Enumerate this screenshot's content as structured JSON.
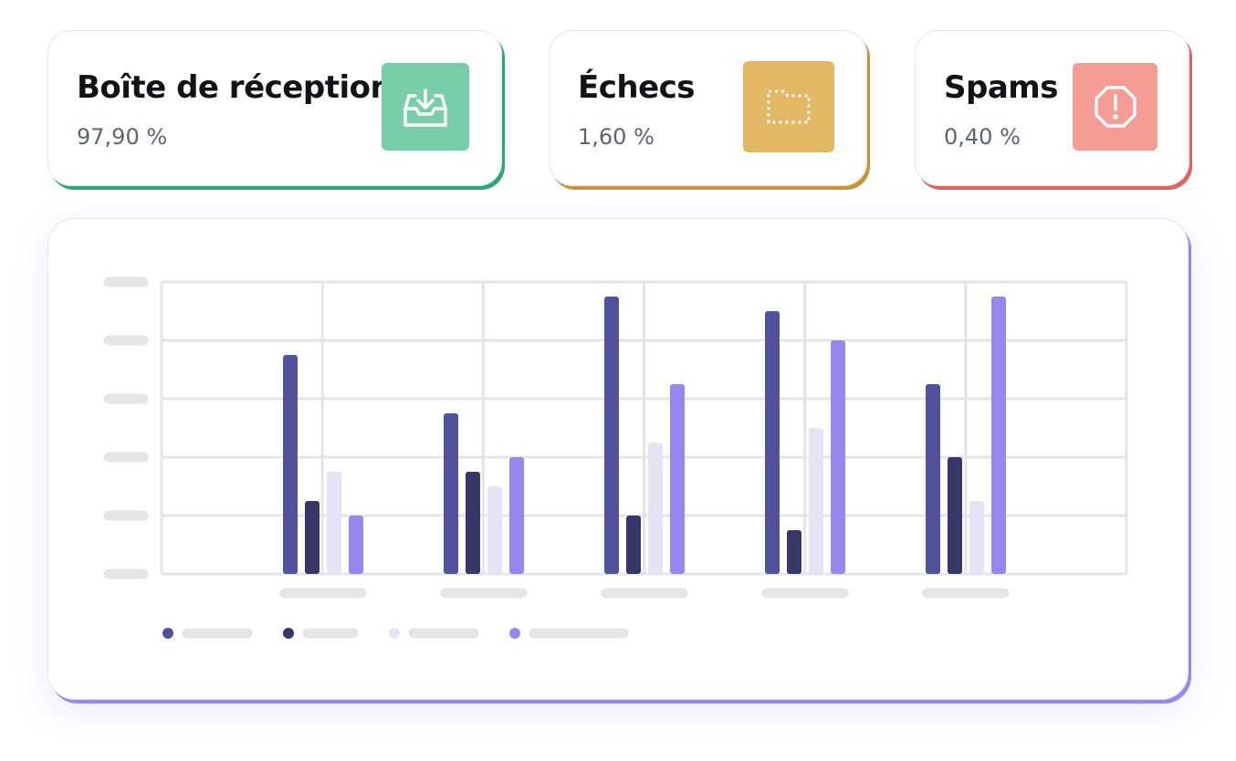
{
  "stats": [
    {
      "title": "Boîte de réception",
      "value": "97,90 %",
      "icon": "inbox-download-icon",
      "tile_color": "#79ceaa",
      "accent": "#2aa87a"
    },
    {
      "title": "Échecs",
      "value": "1,60 %",
      "icon": "dashed-folder-icon",
      "tile_color": "#e2b864",
      "accent": "#c99432"
    },
    {
      "title": "Spams",
      "value": "0,40 %",
      "icon": "octagon-alert-icon",
      "tile_color": "#f59c95",
      "accent": "#e5605e"
    }
  ],
  "chart_card_accent": "#9488ef",
  "chart_data": {
    "type": "bar",
    "categories": [
      "",
      "",
      "",
      "",
      ""
    ],
    "series": [
      {
        "values": [
          3.75,
          2.75,
          4.75,
          4.5,
          3.25
        ],
        "color": "#51519c"
      },
      {
        "values": [
          1.25,
          1.75,
          1.0,
          0.75,
          2.0
        ],
        "color": "#37376a"
      },
      {
        "values": [
          1.75,
          1.5,
          2.25,
          2.5,
          1.25
        ],
        "color": "#e6e3f6"
      },
      {
        "values": [
          1.0,
          2.0,
          3.25,
          4.0,
          4.75
        ],
        "color": "#9488ef"
      }
    ],
    "ylim": [
      0,
      5
    ],
    "grid": true,
    "legend": "bottom-left",
    "tick_labels": "placeholder-bars"
  }
}
